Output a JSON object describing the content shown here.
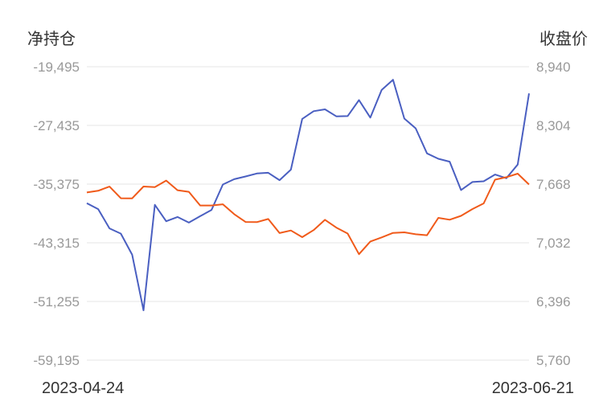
{
  "chart_data": {
    "type": "line",
    "left_axis": {
      "title": "净持仓",
      "ticks": [
        "-19,495",
        "-27,435",
        "-35,375",
        "-43,315",
        "-51,255",
        "-59,195"
      ],
      "range": [
        -59195,
        -19495
      ]
    },
    "right_axis": {
      "title": "收盘价",
      "ticks": [
        "8,940",
        "8,304",
        "7,668",
        "7,032",
        "6,396",
        "5,760"
      ],
      "range": [
        5760,
        8940
      ]
    },
    "x_start_label": "2023-04-24",
    "x_end_label": "2023-06-21",
    "grid": true,
    "series": [
      {
        "axis": "left",
        "color": "#4a5fc1",
        "values": [
          -37960,
          -38760,
          -41370,
          -42070,
          -44940,
          -52450,
          -38180,
          -40400,
          -39820,
          -40580,
          -39720,
          -38870,
          -35430,
          -34710,
          -34340,
          -33940,
          -33840,
          -34840,
          -33420,
          -26550,
          -25510,
          -25260,
          -26210,
          -26170,
          -24010,
          -26380,
          -22640,
          -21260,
          -26510,
          -27830,
          -31220,
          -31950,
          -32340,
          -36180,
          -35090,
          -34990,
          -34080,
          -34580,
          -32730,
          -23110
        ]
      },
      {
        "axis": "right",
        "color": "#f05a1a",
        "values": [
          7577,
          7596,
          7641,
          7515,
          7514,
          7642,
          7636,
          7706,
          7602,
          7584,
          7436,
          7436,
          7449,
          7342,
          7258,
          7256,
          7290,
          7137,
          7165,
          7093,
          7170,
          7281,
          7197,
          7132,
          6908,
          7046,
          7090,
          7139,
          7145,
          7124,
          7114,
          7302,
          7282,
          7324,
          7397,
          7459,
          7716,
          7743,
          7781,
          7664
        ]
      }
    ]
  }
}
